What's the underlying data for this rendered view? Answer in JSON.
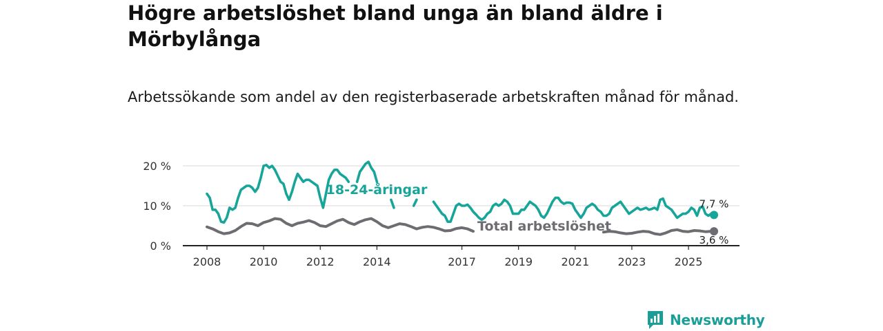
{
  "header": {
    "title": "Högre arbetslöshet bland unga än bland äldre i Mörbylånga",
    "subtitle": "Arbetssökande som andel av den registerbaserade arbetskraften månad för månad."
  },
  "brand": {
    "name": "Newsworthy"
  },
  "colors": {
    "youth": "#17a599",
    "total": "#6f6c71",
    "grid": "#d9d9d9",
    "axis": "#222222"
  },
  "chart_data": {
    "type": "line",
    "title": "Högre arbetslöshet bland unga än bland äldre i Mörbylånga",
    "xlabel": "",
    "ylabel": "",
    "xlim": [
      2008,
      2026.3
    ],
    "ylim": [
      0,
      20
    ],
    "y_ticks": [
      0,
      10,
      20
    ],
    "y_tick_labels": [
      "0 %",
      "10 %",
      "20 %"
    ],
    "x_ticks": [
      2008,
      2010,
      2012,
      2014,
      2017,
      2019,
      2021,
      2023,
      2025
    ],
    "x_tick_labels": [
      "2008",
      "2010",
      "2012",
      "2014",
      "2017",
      "2019",
      "2021",
      "2023",
      "2025"
    ],
    "grid": true,
    "series": [
      {
        "name": "18-24-åringar",
        "label": "18-24-åringar",
        "end_label": "7,7 %",
        "end_value": 7.7,
        "points": [
          [
            2008.0,
            13.0
          ],
          [
            2008.1,
            12.0
          ],
          [
            2008.2,
            9.0
          ],
          [
            2008.3,
            9.0
          ],
          [
            2008.4,
            8.0
          ],
          [
            2008.5,
            6.0
          ],
          [
            2008.6,
            5.8
          ],
          [
            2008.7,
            7.0
          ],
          [
            2008.8,
            9.5
          ],
          [
            2008.9,
            9.0
          ],
          [
            2009.0,
            9.5
          ],
          [
            2009.1,
            12.0
          ],
          [
            2009.2,
            14.0
          ],
          [
            2009.3,
            14.5
          ],
          [
            2009.4,
            15.0
          ],
          [
            2009.5,
            15.0
          ],
          [
            2009.6,
            14.5
          ],
          [
            2009.7,
            13.5
          ],
          [
            2009.8,
            14.5
          ],
          [
            2009.9,
            17.0
          ],
          [
            2010.0,
            20.0
          ],
          [
            2010.1,
            20.2
          ],
          [
            2010.2,
            19.5
          ],
          [
            2010.3,
            20.0
          ],
          [
            2010.4,
            19.0
          ],
          [
            2010.5,
            17.5
          ],
          [
            2010.6,
            16.0
          ],
          [
            2010.7,
            15.5
          ],
          [
            2010.8,
            13.0
          ],
          [
            2010.9,
            11.5
          ],
          [
            2011.0,
            13.5
          ],
          [
            2011.1,
            16.0
          ],
          [
            2011.2,
            18.0
          ],
          [
            2011.3,
            17.0
          ],
          [
            2011.4,
            16.0
          ],
          [
            2011.5,
            16.5
          ],
          [
            2011.6,
            16.5
          ],
          [
            2011.7,
            16.0
          ],
          [
            2011.8,
            15.5
          ],
          [
            2011.9,
            15.0
          ],
          [
            2012.0,
            12.0
          ],
          [
            2012.1,
            9.5
          ],
          [
            2012.2,
            13.0
          ],
          [
            2012.3,
            16.5
          ],
          [
            2012.4,
            18.0
          ],
          [
            2012.5,
            19.0
          ],
          [
            2012.6,
            19.0
          ],
          [
            2012.7,
            18.0
          ],
          [
            2012.8,
            17.5
          ],
          [
            2012.9,
            17.0
          ],
          [
            2013.0,
            16.0
          ],
          [
            null,
            null
          ],
          [
            2013.3,
            16.0
          ],
          [
            2013.4,
            18.5
          ],
          [
            2013.5,
            19.5
          ],
          [
            2013.6,
            20.5
          ],
          [
            2013.7,
            21.0
          ],
          [
            2013.8,
            19.5
          ],
          [
            2013.9,
            18.5
          ],
          [
            2014.0,
            16.0
          ],
          [
            null,
            null
          ],
          [
            2014.5,
            11.5
          ],
          [
            2014.6,
            9.5
          ],
          [
            null,
            null
          ],
          [
            2015.3,
            10.0
          ],
          [
            2015.4,
            11.5
          ],
          [
            null,
            null
          ],
          [
            2016.0,
            11.0
          ],
          [
            2016.1,
            10.0
          ],
          [
            2016.2,
            9.0
          ],
          [
            2016.3,
            8.0
          ],
          [
            2016.4,
            7.5
          ],
          [
            2016.5,
            6.0
          ],
          [
            2016.6,
            6.0
          ],
          [
            2016.7,
            8.0
          ],
          [
            2016.8,
            10.0
          ],
          [
            2016.9,
            10.5
          ],
          [
            2017.0,
            10.0
          ],
          [
            2017.1,
            10.0
          ],
          [
            2017.2,
            10.3
          ],
          [
            2017.3,
            9.5
          ],
          [
            2017.4,
            8.5
          ],
          [
            2017.5,
            7.8
          ],
          [
            2017.6,
            7.0
          ],
          [
            2017.7,
            6.5
          ],
          [
            2017.8,
            7.0
          ],
          [
            2017.9,
            8.0
          ],
          [
            2018.0,
            8.5
          ],
          [
            2018.1,
            10.0
          ],
          [
            2018.2,
            10.5
          ],
          [
            2018.3,
            10.0
          ],
          [
            2018.4,
            10.5
          ],
          [
            2018.5,
            11.5
          ],
          [
            2018.6,
            11.0
          ],
          [
            2018.7,
            10.0
          ],
          [
            2018.8,
            8.0
          ],
          [
            2018.9,
            8.0
          ],
          [
            2019.0,
            8.0
          ],
          [
            2019.1,
            9.0
          ],
          [
            2019.2,
            9.0
          ],
          [
            2019.3,
            10.0
          ],
          [
            2019.4,
            11.0
          ],
          [
            2019.5,
            10.5
          ],
          [
            2019.6,
            10.0
          ],
          [
            2019.7,
            9.0
          ],
          [
            2019.8,
            7.5
          ],
          [
            2019.9,
            7.0
          ],
          [
            2020.0,
            8.0
          ],
          [
            2020.1,
            9.5
          ],
          [
            2020.2,
            11.0
          ],
          [
            2020.3,
            12.0
          ],
          [
            2020.4,
            12.0
          ],
          [
            2020.5,
            11.0
          ],
          [
            2020.6,
            10.5
          ],
          [
            2020.7,
            10.8
          ],
          [
            2020.8,
            10.8
          ],
          [
            2020.9,
            10.5
          ],
          [
            2021.0,
            9.0
          ],
          [
            2021.1,
            8.0
          ],
          [
            2021.2,
            7.0
          ],
          [
            2021.3,
            8.0
          ],
          [
            2021.4,
            9.5
          ],
          [
            2021.5,
            10.0
          ],
          [
            2021.6,
            10.5
          ],
          [
            2021.7,
            10.0
          ],
          [
            2021.8,
            9.0
          ],
          [
            2021.9,
            8.5
          ],
          [
            2022.0,
            7.5
          ],
          [
            2022.1,
            7.5
          ],
          [
            2022.2,
            8.0
          ],
          [
            2022.3,
            9.5
          ],
          [
            2022.4,
            10.0
          ],
          [
            2022.5,
            10.5
          ],
          [
            2022.6,
            11.0
          ],
          [
            2022.7,
            10.0
          ],
          [
            2022.8,
            9.0
          ],
          [
            2022.9,
            8.0
          ],
          [
            2023.0,
            8.5
          ],
          [
            2023.1,
            9.0
          ],
          [
            2023.2,
            9.5
          ],
          [
            2023.3,
            9.0
          ],
          [
            2023.4,
            9.2
          ],
          [
            2023.5,
            9.5
          ],
          [
            2023.6,
            9.0
          ],
          [
            2023.7,
            9.2
          ],
          [
            2023.8,
            9.5
          ],
          [
            2023.9,
            9.0
          ],
          [
            2024.0,
            11.5
          ],
          [
            2024.1,
            11.8
          ],
          [
            2024.2,
            10.0
          ],
          [
            2024.3,
            9.5
          ],
          [
            2024.4,
            9.0
          ],
          [
            2024.5,
            8.0
          ],
          [
            2024.6,
            7.0
          ],
          [
            2024.7,
            7.5
          ],
          [
            2024.8,
            8.0
          ],
          [
            2024.9,
            8.0
          ]
        ]
      },
      {
        "name": "Total arbetslöshet",
        "label": "Total arbetslöshet",
        "end_label": "3,6 %",
        "end_value": 3.6,
        "points": []
      }
    ]
  }
}
